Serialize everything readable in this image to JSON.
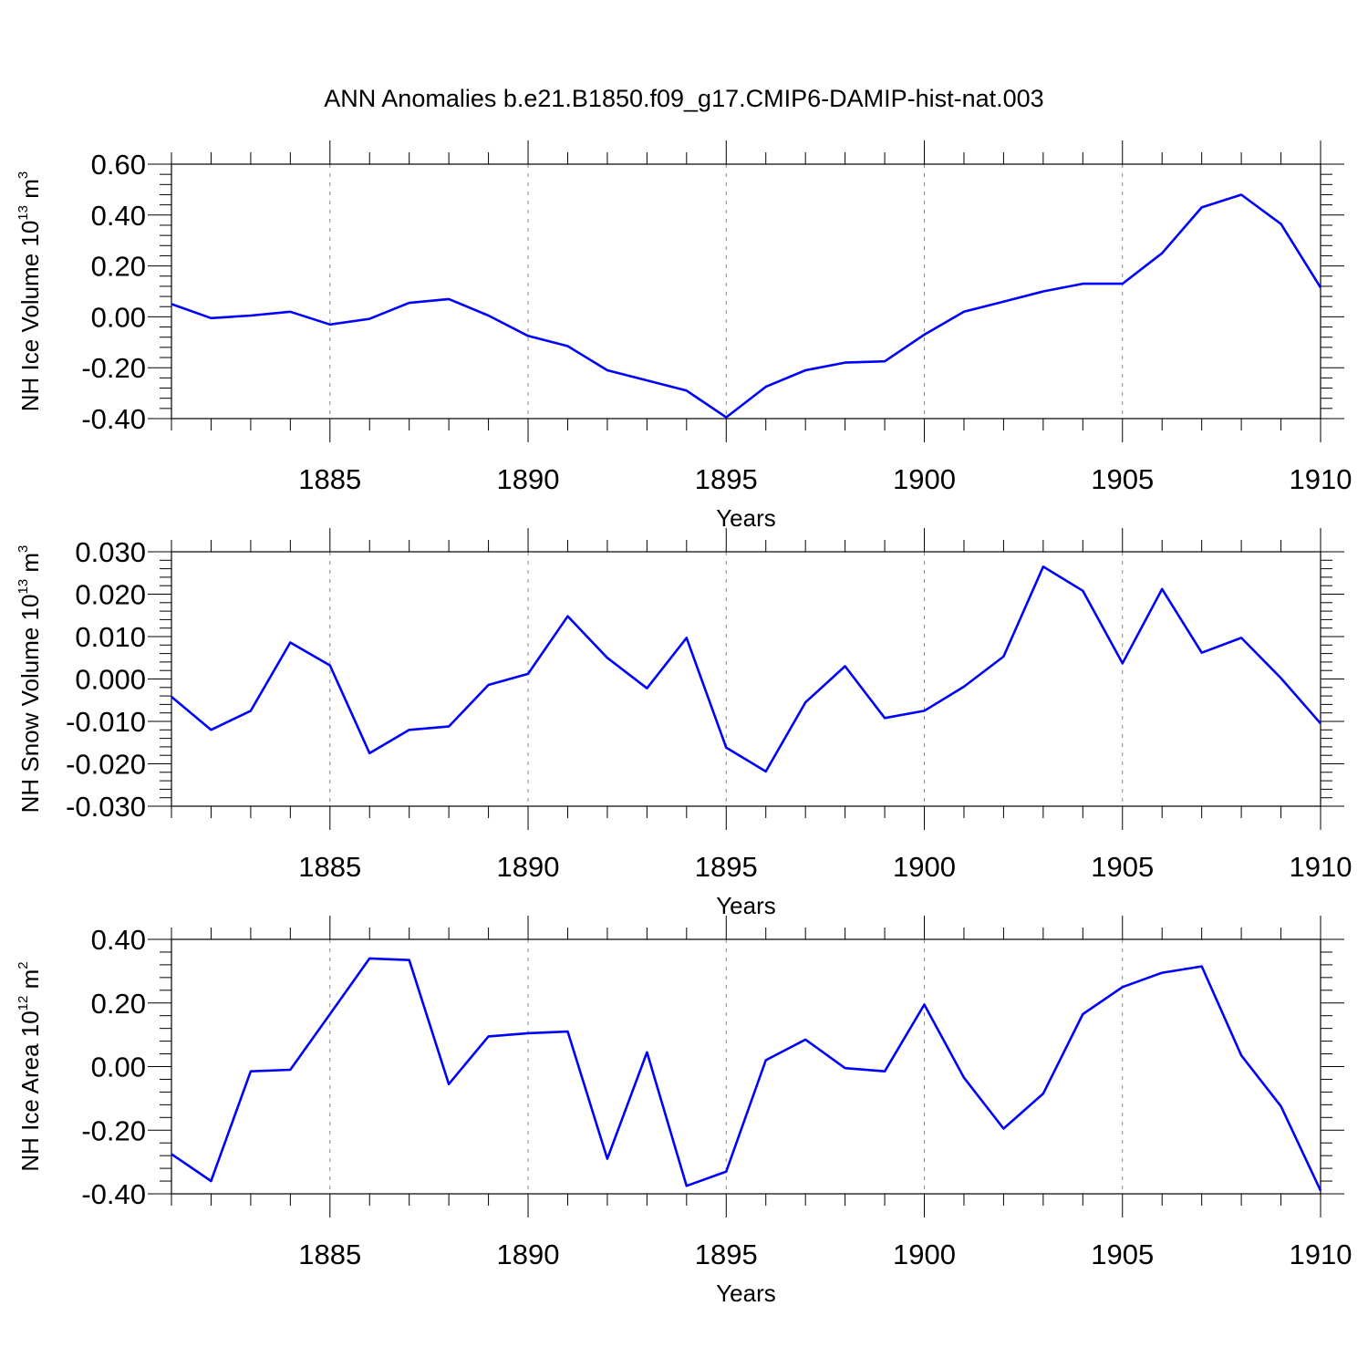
{
  "title": "ANN Anomalies b.e21.B1850.f09_g17.CMIP6-DAMIP-hist-nat.003",
  "colors": {
    "line": "#0000ff",
    "axis": "#000000",
    "grid": "#888888"
  },
  "chart_data": [
    {
      "type": "line",
      "xlabel": "Years",
      "ylabel": {
        "text": "NH Ice Volume 10",
        "exponent": "13",
        "unit": " m",
        "unit_exponent": "3"
      },
      "xlim": [
        1881,
        1910
      ],
      "ylim": [
        -0.4,
        0.6
      ],
      "x_ticks": [
        "1885",
        "1890",
        "1895",
        "1900",
        "1905",
        "1910"
      ],
      "y_ticks": [
        "-0.40",
        "-0.20",
        "0.00",
        "0.20",
        "0.40",
        "0.60"
      ],
      "grid": "vertical dashed at labeled years",
      "x": [
        1881,
        1882,
        1883,
        1884,
        1885,
        1886,
        1887,
        1888,
        1889,
        1890,
        1891,
        1892,
        1893,
        1894,
        1895,
        1896,
        1897,
        1898,
        1899,
        1900,
        1901,
        1902,
        1903,
        1904,
        1905,
        1906,
        1907,
        1908,
        1909,
        1910
      ],
      "series": [
        {
          "values": [
            0.05,
            -0.005,
            0.005,
            0.02,
            -0.03,
            -0.008,
            0.055,
            0.07,
            0.005,
            -0.075,
            -0.115,
            -0.21,
            -0.25,
            -0.29,
            -0.395,
            -0.275,
            -0.21,
            -0.18,
            -0.175,
            -0.07,
            0.02,
            0.06,
            0.1,
            0.13,
            0.13,
            0.25,
            0.43,
            0.48,
            0.365,
            0.115
          ]
        }
      ]
    },
    {
      "type": "line",
      "xlabel": "Years",
      "ylabel": {
        "text": "NH Snow Volume 10",
        "exponent": "13",
        "unit": " m",
        "unit_exponent": "3"
      },
      "xlim": [
        1881,
        1910
      ],
      "ylim": [
        -0.03,
        0.03
      ],
      "x_ticks": [
        "1885",
        "1890",
        "1895",
        "1900",
        "1905",
        "1910"
      ],
      "y_ticks": [
        "-0.030",
        "-0.020",
        "-0.010",
        "0.000",
        "0.010",
        "0.020",
        "0.030"
      ],
      "grid": "vertical dashed at labeled years",
      "x": [
        1881,
        1882,
        1883,
        1884,
        1885,
        1886,
        1887,
        1888,
        1889,
        1890,
        1891,
        1892,
        1893,
        1894,
        1895,
        1896,
        1897,
        1898,
        1899,
        1900,
        1901,
        1902,
        1903,
        1904,
        1905,
        1906,
        1907,
        1908,
        1909,
        1910
      ],
      "series": [
        {
          "values": [
            -0.0042,
            -0.012,
            -0.0075,
            0.0086,
            0.0032,
            -0.0175,
            -0.012,
            -0.0112,
            -0.0014,
            0.0012,
            0.0148,
            0.005,
            -0.0022,
            0.0097,
            -0.0162,
            -0.0218,
            -0.0055,
            0.003,
            -0.0092,
            -0.0075,
            -0.0018,
            0.0053,
            0.0265,
            0.0208,
            0.0037,
            0.0212,
            0.0062,
            0.0097,
            0.0002,
            -0.0105
          ]
        }
      ]
    },
    {
      "type": "line",
      "xlabel": "Years",
      "ylabel": {
        "text": "NH Ice Area 10",
        "exponent": "12",
        "unit": " m",
        "unit_exponent": "2"
      },
      "xlim": [
        1881,
        1910
      ],
      "ylim": [
        -0.4,
        0.4
      ],
      "x_ticks": [
        "1885",
        "1890",
        "1895",
        "1900",
        "1905",
        "1910"
      ],
      "y_ticks": [
        "-0.40",
        "-0.20",
        "0.00",
        "0.20",
        "0.40"
      ],
      "grid": "vertical dashed at labeled years",
      "x": [
        1881,
        1882,
        1883,
        1884,
        1885,
        1886,
        1887,
        1888,
        1889,
        1890,
        1891,
        1892,
        1893,
        1894,
        1895,
        1896,
        1897,
        1898,
        1899,
        1900,
        1901,
        1902,
        1903,
        1904,
        1905,
        1906,
        1907,
        1908,
        1909,
        1910
      ],
      "series": [
        {
          "values": [
            -0.275,
            -0.36,
            -0.015,
            -0.01,
            0.165,
            0.34,
            0.335,
            -0.055,
            0.095,
            0.105,
            0.11,
            -0.29,
            0.045,
            -0.375,
            -0.33,
            0.02,
            0.085,
            -0.005,
            -0.015,
            0.195,
            -0.035,
            -0.195,
            -0.085,
            0.165,
            0.25,
            0.295,
            0.315,
            0.035,
            -0.125,
            -0.39
          ]
        }
      ]
    }
  ]
}
